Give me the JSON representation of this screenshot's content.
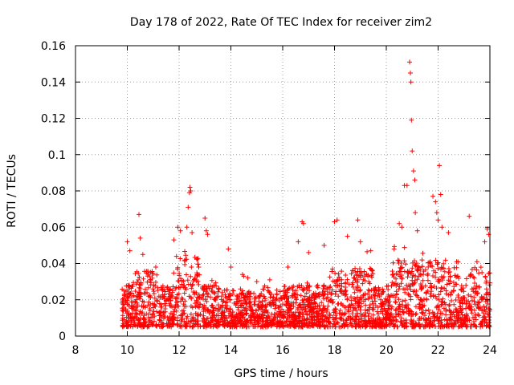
{
  "chart_data": {
    "type": "scatter",
    "title": "Day 178 of 2022, Rate Of TEC Index for receiver zim2",
    "xlabel": "GPS time / hours",
    "ylabel": "ROTI / TECUs",
    "xlim": [
      8,
      24
    ],
    "ylim": [
      0,
      0.16
    ],
    "x_ticks": [
      "8",
      "10",
      "12",
      "14",
      "16",
      "18",
      "20",
      "22",
      "24"
    ],
    "y_ticks": [
      "0",
      "0.02",
      "0.04",
      "0.06",
      "0.08",
      "0.1",
      "0.12",
      "0.14",
      "0.16"
    ],
    "grid": true,
    "marker": "+",
    "marker_color": "#ff0000",
    "series": [
      {
        "name": "ROTI",
        "description": "Dense scatter of ROTI values between 9.8 h and 24 h, mostly 0.005-0.04 TECU/min",
        "x_range": [
          9.8,
          24
        ],
        "baseline_band": [
          0.005,
          0.035
        ],
        "points": [
          [
            10.0,
            0.052
          ],
          [
            10.1,
            0.047
          ],
          [
            10.45,
            0.067
          ],
          [
            10.5,
            0.054
          ],
          [
            10.6,
            0.045
          ],
          [
            11.1,
            0.038
          ],
          [
            11.8,
            0.053
          ],
          [
            11.95,
            0.06
          ],
          [
            12.05,
            0.058
          ],
          [
            12.3,
            0.06
          ],
          [
            12.35,
            0.071
          ],
          [
            12.4,
            0.079
          ],
          [
            12.42,
            0.082
          ],
          [
            12.45,
            0.08
          ],
          [
            12.5,
            0.057
          ],
          [
            13.0,
            0.065
          ],
          [
            13.05,
            0.058
          ],
          [
            13.1,
            0.056
          ],
          [
            13.9,
            0.048
          ],
          [
            14.0,
            0.038
          ],
          [
            14.5,
            0.033
          ],
          [
            15.0,
            0.03
          ],
          [
            15.5,
            0.031
          ],
          [
            16.2,
            0.038
          ],
          [
            16.6,
            0.052
          ],
          [
            16.75,
            0.063
          ],
          [
            16.8,
            0.062
          ],
          [
            17.0,
            0.046
          ],
          [
            17.6,
            0.05
          ],
          [
            18.0,
            0.063
          ],
          [
            18.1,
            0.064
          ],
          [
            18.5,
            0.055
          ],
          [
            18.9,
            0.064
          ],
          [
            19.0,
            0.052
          ],
          [
            19.4,
            0.047
          ],
          [
            20.3,
            0.048
          ],
          [
            20.5,
            0.062
          ],
          [
            20.6,
            0.06
          ],
          [
            20.7,
            0.083
          ],
          [
            20.8,
            0.083
          ],
          [
            20.9,
            0.151
          ],
          [
            20.93,
            0.145
          ],
          [
            20.95,
            0.14
          ],
          [
            20.97,
            0.119
          ],
          [
            21.0,
            0.102
          ],
          [
            21.05,
            0.091
          ],
          [
            21.1,
            0.086
          ],
          [
            21.12,
            0.068
          ],
          [
            21.2,
            0.058
          ],
          [
            21.8,
            0.077
          ],
          [
            21.9,
            0.074
          ],
          [
            21.95,
            0.068
          ],
          [
            22.0,
            0.064
          ],
          [
            22.05,
            0.094
          ],
          [
            22.1,
            0.078
          ],
          [
            22.15,
            0.06
          ],
          [
            22.4,
            0.057
          ],
          [
            23.2,
            0.066
          ],
          [
            23.5,
            0.041
          ],
          [
            23.8,
            0.052
          ],
          [
            23.9,
            0.059
          ],
          [
            23.95,
            0.056
          ]
        ]
      }
    ]
  }
}
